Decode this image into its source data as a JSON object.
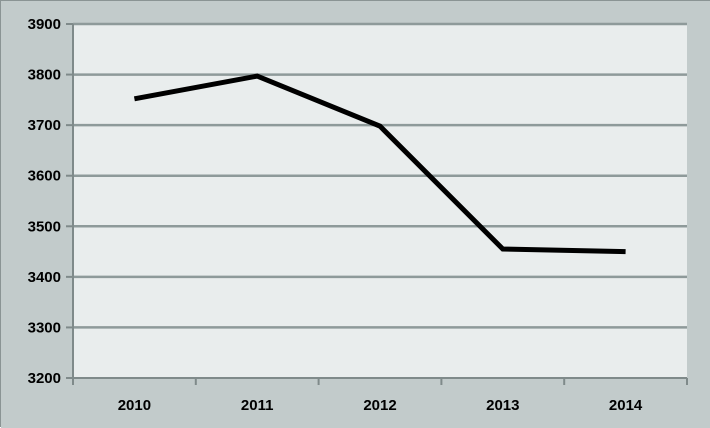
{
  "chart_data": {
    "type": "line",
    "title": "",
    "xlabel": "",
    "ylabel": "",
    "categories": [
      "2010",
      "2011",
      "2012",
      "2013",
      "2014"
    ],
    "series": [
      {
        "values": [
          3752,
          3797,
          3698,
          3455,
          3450
        ]
      }
    ],
    "ylim": [
      3200,
      3900
    ],
    "yticks": [
      3200,
      3300,
      3400,
      3500,
      3600,
      3700,
      3800,
      3900
    ],
    "ytick_labels": [
      "3200",
      "3300",
      "3400",
      "3500",
      "3600",
      "3700",
      "3800",
      "3900"
    ],
    "grid": true,
    "legend": "none",
    "colors": {
      "background": "#c2cbcb",
      "plot_area": "#e9eded",
      "gridline": "#8e9a9a",
      "axis": "#7f8a8a",
      "line": "#000000"
    }
  }
}
